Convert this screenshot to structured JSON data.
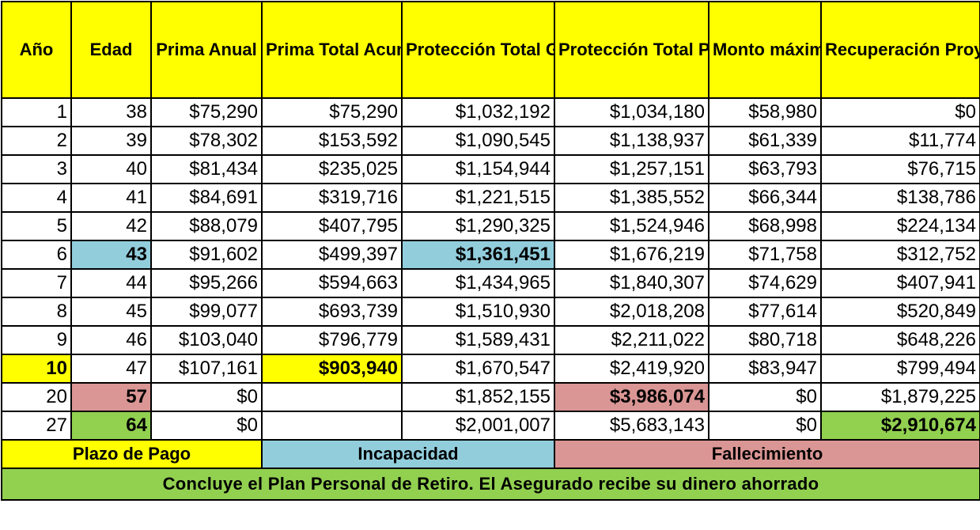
{
  "colors": {
    "header": "#ffff00",
    "payment_term": "#ffff00",
    "disability": "#92cddc",
    "death": "#da9694",
    "retirement": "#92d050"
  },
  "headers": [
    "Año",
    "Edad",
    "Prima Anual",
    "Prima Total Acumulada",
    "Protección Total Garantizada",
    "Protección Total Proyectada",
    "Monto máximo deducible",
    "Recuperación Proyectada"
  ],
  "rows": [
    [
      "1",
      "38",
      "$75,290",
      "$75,290",
      "$1,032,192",
      "$1,034,180",
      "$58,980",
      "$0"
    ],
    [
      "2",
      "39",
      "$78,302",
      "$153,592",
      "$1,090,545",
      "$1,138,937",
      "$61,339",
      "$11,774"
    ],
    [
      "3",
      "40",
      "$81,434",
      "$235,025",
      "$1,154,944",
      "$1,257,151",
      "$63,793",
      "$76,715"
    ],
    [
      "4",
      "41",
      "$84,691",
      "$319,716",
      "$1,221,515",
      "$1,385,552",
      "$66,344",
      "$138,786"
    ],
    [
      "5",
      "42",
      "$88,079",
      "$407,795",
      "$1,290,325",
      "$1,524,946",
      "$68,998",
      "$224,134"
    ],
    [
      "6",
      "43",
      "$91,602",
      "$499,397",
      "$1,361,451",
      "$1,676,219",
      "$71,758",
      "$312,752"
    ],
    [
      "7",
      "44",
      "$95,266",
      "$594,663",
      "$1,434,965",
      "$1,840,307",
      "$74,629",
      "$407,941"
    ],
    [
      "8",
      "45",
      "$99,077",
      "$693,739",
      "$1,510,930",
      "$2,018,208",
      "$77,614",
      "$520,849"
    ],
    [
      "9",
      "46",
      "$103,040",
      "$796,779",
      "$1,589,431",
      "$2,211,022",
      "$80,718",
      "$648,226"
    ],
    [
      "10",
      "47",
      "$107,161",
      "$903,940",
      "$1,670,547",
      "$2,419,920",
      "$83,947",
      "$799,494"
    ],
    [
      "20",
      "57",
      "$0",
      "",
      "$1,852,155",
      "$3,986,074",
      "$0",
      "$1,879,225"
    ],
    [
      "27",
      "64",
      "$0",
      "",
      "$2,001,007",
      "$5,683,143",
      "$0",
      "$2,910,674"
    ]
  ],
  "legend": {
    "payment_term": "Plazo de Pago",
    "disability": "Incapacidad",
    "death": "Fallecimiento"
  },
  "footer": "Concluye el Plan Personal de Retiro. El Asegurado recibe su dinero ahorrado"
}
